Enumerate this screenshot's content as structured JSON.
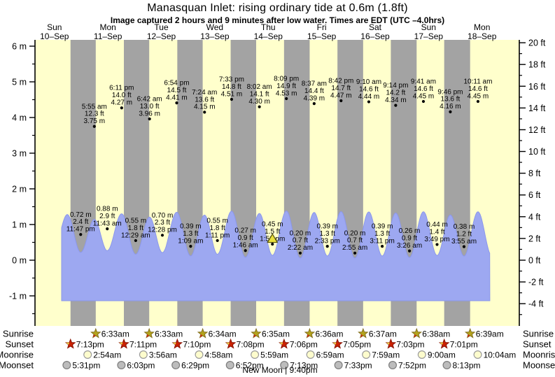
{
  "chart_data": {
    "type": "area",
    "title": "Manasquan Inlet: rising  ordinary tide at 0.6m (1.8ft)",
    "subtitle": "Image captured 2 hours and 9 minutes after low water. Times are EDT (UTC –4.0hrs)",
    "colors": {
      "plot_day_bg": "#ffffcc",
      "plot_night_bg": "#a3a3a3",
      "tide_fill": "#9da8f1",
      "tide_edge": "#8b97ec",
      "day_label": "#ff0000",
      "current_marker_fill": "#e9e03c",
      "current_marker_stroke": "#55500a",
      "sunrise_star": "#b4a41c",
      "sunrise_accent": "#c03010",
      "sunset_star": "#cc2200",
      "sunset_accent": "#e8d44c",
      "moonrise_fill": "#fdfccd",
      "moonrise_stroke": "#9a9a9a",
      "moonset_fill": "#bcbcbc",
      "moonset_stroke": "#7d7d7d"
    },
    "y_axis_left": {
      "unit": "m",
      "major_ticks": [
        {
          "v": 6,
          "label": "6 m"
        },
        {
          "v": 5,
          "label": "5 m"
        },
        {
          "v": 4,
          "label": "4 m"
        },
        {
          "v": 3,
          "label": "3 m"
        },
        {
          "v": 2,
          "label": "2 m"
        },
        {
          "v": 1,
          "label": "1 m"
        },
        {
          "v": 0,
          "label": "0 m"
        },
        {
          "v": -1,
          "label": "-1 m"
        }
      ]
    },
    "y_axis_right": {
      "unit": "ft",
      "major_ticks": [
        {
          "v": 20,
          "label": "20 ft"
        },
        {
          "v": 18,
          "label": "18 ft"
        },
        {
          "v": 16,
          "label": "16 ft"
        },
        {
          "v": 14,
          "label": "14 ft"
        },
        {
          "v": 12,
          "label": "12 ft"
        },
        {
          "v": 10,
          "label": "10 ft"
        },
        {
          "v": 8,
          "label": "8 ft"
        },
        {
          "v": 6,
          "label": "6 ft"
        },
        {
          "v": 4,
          "label": "4 ft"
        },
        {
          "v": 2,
          "label": "2 ft"
        },
        {
          "v": 0,
          "label": "0 ft"
        },
        {
          "v": -2,
          "label": "-2 ft"
        },
        {
          "v": -4,
          "label": "-4 ft"
        }
      ]
    },
    "days": [
      {
        "name": "Sun",
        "date": "10–Sep"
      },
      {
        "name": "Mon",
        "date": "11–Sep"
      },
      {
        "name": "Tue",
        "date": "12–Sep"
      },
      {
        "name": "Wed",
        "date": "13–Sep"
      },
      {
        "name": "Thu",
        "date": "14–Sep"
      },
      {
        "name": "Fri",
        "date": "15–Sep"
      },
      {
        "name": "Sat",
        "date": "16–Sep"
      },
      {
        "name": "Sun",
        "date": "17–Sep"
      },
      {
        "name": "Mon",
        "date": "18–Sep"
      }
    ],
    "high_tides": [
      {
        "h": 29.917,
        "time": "5:55 am",
        "ft": "12.3 ft",
        "m": "3.75 m"
      },
      {
        "h": 42.183,
        "time": "6:11 pm",
        "ft": "14.0 ft",
        "m": "4.27 m"
      },
      {
        "h": 54.7,
        "time": "6:42 am",
        "ft": "13.0 ft",
        "m": "3.96 m"
      },
      {
        "h": 66.9,
        "time": "6:54 pm",
        "ft": "14.5 ft",
        "m": "4.41 m"
      },
      {
        "h": 79.4,
        "time": "7:24 am",
        "ft": "13.6 ft",
        "m": "4.15 m"
      },
      {
        "h": 91.55,
        "time": "7:33 pm",
        "ft": "14.8 ft",
        "m": "4.51 m"
      },
      {
        "h": 104.033,
        "time": "8:02 am",
        "ft": "14.1 ft",
        "m": "4.30 m"
      },
      {
        "h": 116.15,
        "time": "8:09 pm",
        "ft": "14.9 ft",
        "m": "4.53 m"
      },
      {
        "h": 128.617,
        "time": "8:37 am",
        "ft": "14.4 ft",
        "m": "4.39 m"
      },
      {
        "h": 140.7,
        "time": "8:42 pm",
        "ft": "14.7 ft",
        "m": "4.47 m"
      },
      {
        "h": 153.167,
        "time": "9:10 am",
        "ft": "14.6 ft",
        "m": "4.44 m"
      },
      {
        "h": 165.233,
        "time": "9:14 pm",
        "ft": "14.2 ft",
        "m": "4.34 m"
      },
      {
        "h": 177.683,
        "time": "9:41 am",
        "ft": "14.6 ft",
        "m": "4.45 m"
      },
      {
        "h": 189.767,
        "time": "9:46 pm",
        "ft": "13.6 ft",
        "m": "4.16 m"
      },
      {
        "h": 202.183,
        "time": "10:11 am",
        "ft": "14.6 ft",
        "m": "4.45 m"
      }
    ],
    "low_tides": [
      {
        "h": 23.783,
        "m": "0.72 m",
        "ft": "2.4 ft",
        "time": "11:47 pm"
      },
      {
        "h": 35.717,
        "m": "0.88 m",
        "ft": "2.9 ft",
        "time": "11:43 am"
      },
      {
        "h": 48.483,
        "m": "0.55 m",
        "ft": "1.8 ft",
        "time": "12:29 am"
      },
      {
        "h": 60.467,
        "m": "0.70 m",
        "ft": "2.3 ft",
        "time": "12:28 pm"
      },
      {
        "h": 73.15,
        "m": "0.39 m",
        "ft": "1.3 ft",
        "time": "1:09 am"
      },
      {
        "h": 85.183,
        "m": "0.55 m",
        "ft": "1.8 ft",
        "time": "1:11 pm"
      },
      {
        "h": 97.767,
        "m": "0.27 m",
        "ft": "0.9 ft",
        "time": "1:46 am"
      },
      {
        "h": 109.883,
        "m": "0.45 m",
        "ft": "1.5 ft",
        "time": "1:53 pm"
      },
      {
        "h": 122.367,
        "m": "0.20 m",
        "ft": "0.7 ft",
        "time": "2:22 am"
      },
      {
        "h": 134.55,
        "m": "0.39 m",
        "ft": "1.3 ft",
        "time": "2:33 pm"
      },
      {
        "h": 146.917,
        "m": "0.20 m",
        "ft": "0.7 ft",
        "time": "2:55 am"
      },
      {
        "h": 159.183,
        "m": "0.39 m",
        "ft": "1.3 ft",
        "time": "3:11 pm"
      },
      {
        "h": 171.433,
        "m": "0.26 m",
        "ft": "0.9 ft",
        "time": "3:26 am"
      },
      {
        "h": 183.817,
        "m": "0.44 m",
        "ft": "1.4 ft",
        "time": "3:49 pm"
      },
      {
        "h": 195.917,
        "m": "0.38 m",
        "ft": "1.2 ft",
        "time": "3:55 am"
      }
    ],
    "current_marker": {
      "at_low_time": "1:53 pm",
      "h": 109.883
    },
    "sun_moon_rows": [
      {
        "id": "sunrise",
        "label": "Sunrise",
        "icon": "sunrise-star-icon",
        "times": [
          {
            "t": "6:33am",
            "h": 30.55
          },
          {
            "t": "6:33am",
            "h": 54.55
          },
          {
            "t": "6:34am",
            "h": 78.567
          },
          {
            "t": "6:35am",
            "h": 102.583
          },
          {
            "t": "6:36am",
            "h": 126.6
          },
          {
            "t": "6:37am",
            "h": 150.617
          },
          {
            "t": "6:38am",
            "h": 174.633
          },
          {
            "t": "6:39am",
            "h": 198.65
          }
        ]
      },
      {
        "id": "sunset",
        "label": "Sunset",
        "icon": "sunset-star-icon",
        "times": [
          {
            "t": "7:13pm",
            "h": 19.217
          },
          {
            "t": "7:11pm",
            "h": 43.183
          },
          {
            "t": "7:10pm",
            "h": 67.167
          },
          {
            "t": "7:08pm",
            "h": 91.133
          },
          {
            "t": "7:06pm",
            "h": 115.1
          },
          {
            "t": "7:05pm",
            "h": 139.083
          },
          {
            "t": "7:03pm",
            "h": 163.05
          },
          {
            "t": "7:01pm",
            "h": 187.017
          }
        ]
      },
      {
        "id": "moonrise",
        "label": "Moonrise",
        "icon": "moonrise-icon",
        "times": [
          {
            "t": "2:54am",
            "h": 26.9
          },
          {
            "t": "3:56am",
            "h": 51.933
          },
          {
            "t": "4:58am",
            "h": 76.967
          },
          {
            "t": "5:59am",
            "h": 101.983
          },
          {
            "t": "6:59am",
            "h": 126.983
          },
          {
            "t": "7:59am",
            "h": 151.983
          },
          {
            "t": "9:00am",
            "h": 177.0
          },
          {
            "t": "10:04am",
            "h": 202.067
          }
        ]
      },
      {
        "id": "moonset",
        "label": "Moonset",
        "icon": "moonset-icon",
        "times": [
          {
            "t": "5:31pm",
            "h": 17.517
          },
          {
            "t": "6:03pm",
            "h": 42.05
          },
          {
            "t": "6:29pm",
            "h": 66.483
          },
          {
            "t": "6:52pm",
            "h": 90.867
          },
          {
            "t": "7:13pm",
            "h": 115.217
          },
          {
            "t": "7:33pm",
            "h": 139.55
          },
          {
            "t": "7:52pm",
            "h": 163.867
          },
          {
            "t": "8:13pm",
            "h": 188.217
          }
        ]
      }
    ],
    "moon_phase": "New Moon | 9:40pm"
  }
}
